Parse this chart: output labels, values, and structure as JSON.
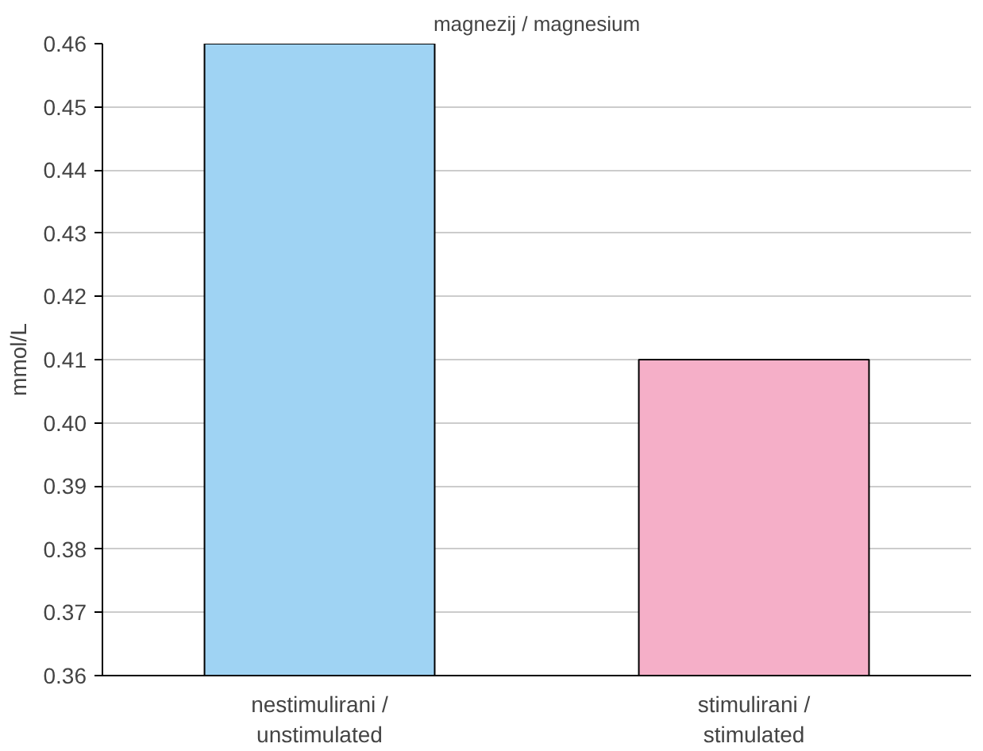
{
  "chart_data": {
    "type": "bar",
    "title": "magnezij / magnesium",
    "ylabel": "mmol/L",
    "categories": [
      "nestimulirani /\nunstimulated",
      "stimulirani /\nstimulated"
    ],
    "values": [
      0.46,
      0.41
    ],
    "colors": [
      "#9fd3f3",
      "#f5afc8"
    ],
    "ylim": [
      0.36,
      0.46
    ],
    "yticks": [
      0.36,
      0.37,
      0.38,
      0.39,
      {
        "value": 0.4,
        "label": "0.40"
      },
      0.41,
      0.42,
      0.43,
      0.44,
      0.45,
      0.46
    ],
    "grid": "y"
  }
}
